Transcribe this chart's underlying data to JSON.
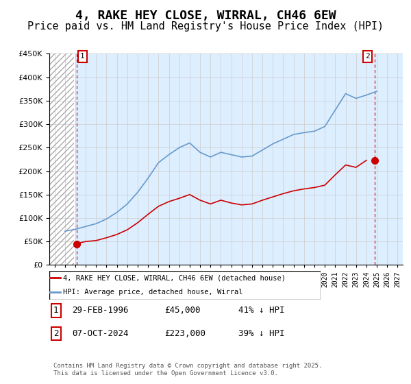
{
  "title": "4, RAKE HEY CLOSE, WIRRAL, CH46 6EW",
  "subtitle": "Price paid vs. HM Land Registry's House Price Index (HPI)",
  "title_fontsize": 13,
  "subtitle_fontsize": 11,
  "ylabel": "",
  "xlabel": "",
  "ylim": [
    0,
    450000
  ],
  "yticks": [
    0,
    50000,
    100000,
    150000,
    200000,
    250000,
    300000,
    350000,
    400000,
    450000
  ],
  "ytick_labels": [
    "£0",
    "£50K",
    "£100K",
    "£150K",
    "£200K",
    "£250K",
    "£300K",
    "£350K",
    "£400K",
    "£450K"
  ],
  "xlim_start": 1993.5,
  "xlim_end": 2027.5,
  "hatch_end_year": 1995.9,
  "sale1_year": 1996.16,
  "sale1_price": 45000,
  "sale1_label": "1",
  "sale2_year": 2024.77,
  "sale2_price": 223000,
  "sale2_label": "2",
  "red_line_color": "#cc0000",
  "blue_line_color": "#6699cc",
  "hatch_color": "#cccccc",
  "grid_color": "#cccccc",
  "bg_color": "#ddeeff",
  "annotation_box_color": "#cc0000",
  "legend_entry1": "4, RAKE HEY CLOSE, WIRRAL, CH46 6EW (detached house)",
  "legend_entry2": "HPI: Average price, detached house, Wirral",
  "table_row1": [
    "1",
    "29-FEB-1996",
    "£45,000",
    "41% ↓ HPI"
  ],
  "table_row2": [
    "2",
    "07-OCT-2024",
    "£223,000",
    "39% ↓ HPI"
  ],
  "copyright_text": "Contains HM Land Registry data © Crown copyright and database right 2025.\nThis data is licensed under the Open Government Licence v3.0.",
  "hpi_years": [
    1995,
    1996,
    1997,
    1998,
    1999,
    2000,
    2001,
    2002,
    2003,
    2004,
    2005,
    2006,
    2007,
    2008,
    2009,
    2010,
    2011,
    2012,
    2013,
    2014,
    2015,
    2016,
    2017,
    2018,
    2019,
    2020,
    2021,
    2022,
    2023,
    2024,
    2025
  ],
  "hpi_values": [
    72000,
    76000,
    82000,
    88000,
    98000,
    112000,
    130000,
    155000,
    185000,
    218000,
    235000,
    250000,
    260000,
    240000,
    230000,
    240000,
    235000,
    230000,
    232000,
    245000,
    258000,
    268000,
    278000,
    282000,
    285000,
    295000,
    330000,
    365000,
    355000,
    362000,
    370000
  ],
  "red_years": [
    1996,
    1997,
    1998,
    1999,
    2000,
    2001,
    2002,
    2003,
    2004,
    2005,
    2006,
    2007,
    2008,
    2009,
    2010,
    2011,
    2012,
    2013,
    2014,
    2015,
    2016,
    2017,
    2018,
    2019,
    2020,
    2021,
    2022,
    2023,
    2024
  ],
  "red_values": [
    45000,
    50000,
    52000,
    58000,
    65000,
    75000,
    90000,
    108000,
    125000,
    135000,
    142000,
    150000,
    138000,
    130000,
    138000,
    132000,
    128000,
    130000,
    138000,
    145000,
    152000,
    158000,
    162000,
    165000,
    170000,
    192000,
    213000,
    208000,
    223000
  ]
}
